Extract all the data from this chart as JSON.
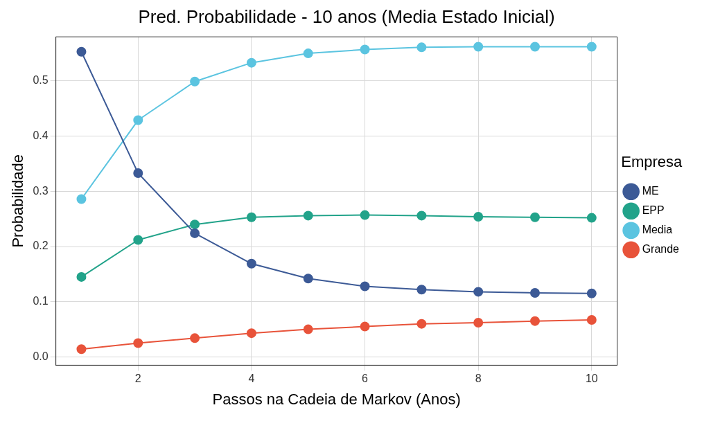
{
  "chart_data": {
    "type": "line",
    "title": "Pred. Probabilidade - 10 anos (Media Estado Inicial)",
    "xlabel": "Passos na Cadeia de Markov (Anos)",
    "ylabel": "Probabilidade",
    "legend_title": "Empresa",
    "legend": "right",
    "grid": true,
    "marker": "circle",
    "line_style": "solid",
    "x": [
      1,
      2,
      3,
      4,
      5,
      6,
      7,
      8,
      9,
      10
    ],
    "xlim": [
      0.55,
      10.45
    ],
    "xticks": [
      2,
      4,
      6,
      8,
      10
    ],
    "ylim": [
      -0.015,
      0.58
    ],
    "yticks": [
      {
        "value": 0,
        "label": "0.0"
      },
      0.1,
      0.2,
      0.3,
      0.4,
      0.5
    ],
    "series": [
      {
        "name": "ME",
        "color": "#3c5a96",
        "values": [
          0.553,
          0.333,
          0.224,
          0.169,
          0.142,
          0.128,
          0.122,
          0.118,
          0.116,
          0.115
        ]
      },
      {
        "name": "EPP",
        "color": "#22a38a",
        "values": [
          0.145,
          0.212,
          0.24,
          0.253,
          0.256,
          0.257,
          0.256,
          0.254,
          0.253,
          0.252
        ]
      },
      {
        "name": "Media",
        "color": "#5bc4e0",
        "values": [
          0.286,
          0.429,
          0.499,
          0.533,
          0.55,
          0.557,
          0.561,
          0.562,
          0.562,
          0.562
        ]
      },
      {
        "name": "Grande",
        "color": "#e8533a",
        "values": [
          0.014,
          0.025,
          0.034,
          0.043,
          0.05,
          0.055,
          0.06,
          0.062,
          0.065,
          0.067
        ]
      }
    ]
  }
}
